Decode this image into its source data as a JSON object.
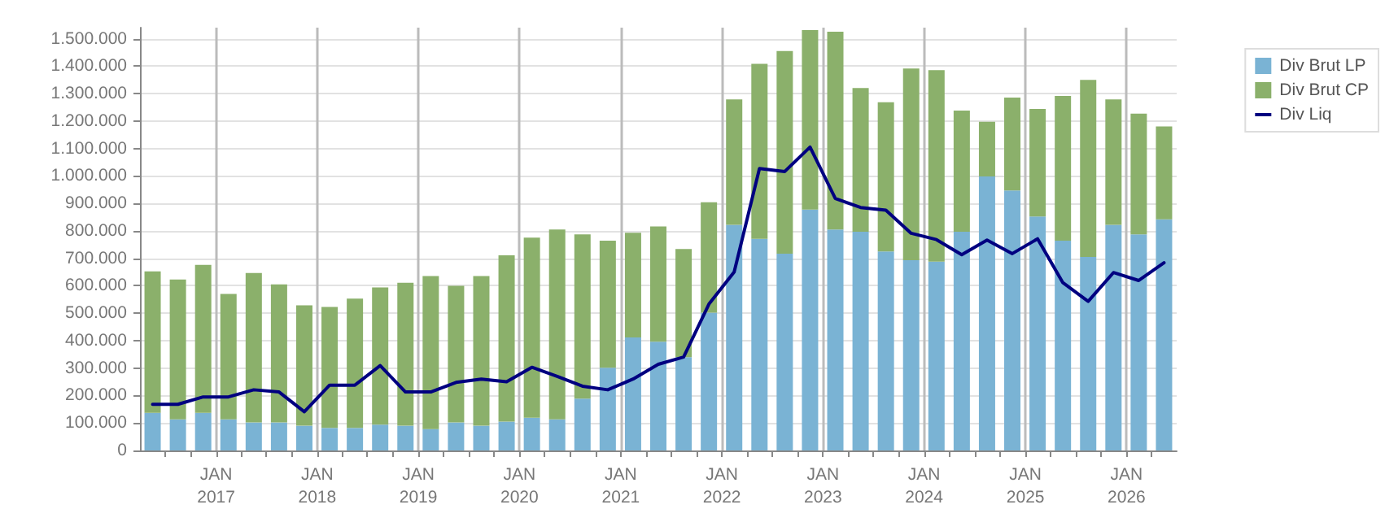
{
  "chart_data": {
    "type": "bar",
    "stacked": true,
    "grid": true,
    "legend": "top right",
    "marker": "none",
    "line_style": "solid",
    "x": [
      "2016-05-15",
      "2016-08-15",
      "2016-11-15",
      "2017-02-15",
      "2017-05-15",
      "2017-08-15",
      "2017-11-15",
      "2018-02-15",
      "2018-05-15",
      "2018-08-15",
      "2018-11-15",
      "2019-02-15",
      "2019-05-15",
      "2019-08-15",
      "2019-11-15",
      "2020-02-15",
      "2020-05-15",
      "2020-08-15",
      "2020-11-15",
      "2021-02-15",
      "2021-05-15",
      "2021-08-15",
      "2021-11-15",
      "2022-02-15",
      "2022-05-15",
      "2022-08-15",
      "2022-11-15",
      "2023-02-15",
      "2023-05-15",
      "2023-08-15",
      "2023-11-15",
      "2024-02-15",
      "2024-05-15",
      "2024-08-15",
      "2024-11-15",
      "2025-02-15",
      "2025-05-15",
      "2025-08-15",
      "2025-11-15",
      "2026-02-15",
      "2026-05-15"
    ],
    "xlim": [
      "2016-04-01",
      "2026-07-01"
    ],
    "xticks": [
      {
        "value": "2016-07-01",
        "label": null
      },
      {
        "value": "2016-10-01",
        "label": null
      },
      {
        "value": "2017-01-01",
        "label": "JAN\n2017"
      },
      {
        "value": "2017-04-01",
        "label": null
      },
      {
        "value": "2017-07-01",
        "label": null
      },
      {
        "value": "2017-10-01",
        "label": null
      },
      {
        "value": "2018-01-01",
        "label": "JAN\n2018"
      },
      {
        "value": "2018-04-01",
        "label": null
      },
      {
        "value": "2018-07-01",
        "label": null
      },
      {
        "value": "2018-10-01",
        "label": null
      },
      {
        "value": "2019-01-01",
        "label": "JAN\n2019"
      },
      {
        "value": "2019-04-01",
        "label": null
      },
      {
        "value": "2019-07-01",
        "label": null
      },
      {
        "value": "2019-10-01",
        "label": null
      },
      {
        "value": "2020-01-01",
        "label": "JAN\n2020"
      },
      {
        "value": "2020-04-01",
        "label": null
      },
      {
        "value": "2020-07-01",
        "label": null
      },
      {
        "value": "2020-10-01",
        "label": null
      },
      {
        "value": "2021-01-01",
        "label": "JAN\n2021"
      },
      {
        "value": "2021-04-01",
        "label": null
      },
      {
        "value": "2021-07-01",
        "label": null
      },
      {
        "value": "2021-10-01",
        "label": null
      },
      {
        "value": "2022-01-01",
        "label": "JAN\n2022"
      },
      {
        "value": "2022-04-01",
        "label": null
      },
      {
        "value": "2022-07-01",
        "label": null
      },
      {
        "value": "2022-10-01",
        "label": null
      },
      {
        "value": "2023-01-01",
        "label": "JAN\n2023"
      },
      {
        "value": "2023-04-01",
        "label": null
      },
      {
        "value": "2023-07-01",
        "label": null
      },
      {
        "value": "2023-10-01",
        "label": null
      },
      {
        "value": "2024-01-01",
        "label": "JAN\n2024"
      },
      {
        "value": "2024-04-01",
        "label": null
      },
      {
        "value": "2024-07-01",
        "label": null
      },
      {
        "value": "2024-10-01",
        "label": null
      },
      {
        "value": "2025-01-01",
        "label": "JAN\n2025"
      },
      {
        "value": "2025-04-01",
        "label": null
      },
      {
        "value": "2025-07-01",
        "label": null
      },
      {
        "value": "2025-10-01",
        "label": null
      },
      {
        "value": "2026-01-01",
        "label": "JAN\n2026"
      },
      {
        "value": "2026-04-01",
        "label": null
      }
    ],
    "ylim": [
      0,
      1540000
    ],
    "yticks": [
      0,
      {
        "value": 100000,
        "label": "100.000"
      },
      {
        "value": 200000,
        "label": "200.000"
      },
      {
        "value": 300000,
        "label": "300.000"
      },
      {
        "value": 400000,
        "label": "400.000"
      },
      {
        "value": 500000,
        "label": "500.000"
      },
      {
        "value": 600000,
        "label": "600.000"
      },
      {
        "value": 700000,
        "label": "700.000"
      },
      {
        "value": 800000,
        "label": "800.000"
      },
      {
        "value": 900000,
        "label": "900.000"
      },
      {
        "value": 1000000,
        "label": "1.000.000"
      },
      {
        "value": 1100000,
        "label": "1.100.000"
      },
      {
        "value": 1200000,
        "label": "1.200.000"
      },
      {
        "value": 1300000,
        "label": "1.300.000"
      },
      {
        "value": 1400000,
        "label": "1.400.000"
      },
      {
        "value": 1500000,
        "label": "1.500.000"
      }
    ],
    "series": [
      {
        "name": "Div Brut LP",
        "color": "#7ab3d4",
        "values": [
          137000,
          113000,
          137000,
          113000,
          102000,
          102000,
          90000,
          82000,
          82000,
          94000,
          90000,
          78000,
          102000,
          90000,
          105000,
          119000,
          113000,
          189000,
          301000,
          412000,
          396000,
          340000,
          502000,
          822000,
          771000,
          717000,
          877000,
          805000,
          797000,
          725000,
          693000,
          688000,
          797000,
          998000,
          947000,
          852000,
          764000,
          705000,
          822000,
          787000,
          842000
        ]
      },
      {
        "name": "Div Brut CP",
        "color": "#8bb06b",
        "values": [
          515000,
          510000,
          539000,
          457000,
          544000,
          503000,
          439000,
          441000,
          471000,
          500000,
          521000,
          557000,
          498000,
          545000,
          606000,
          656000,
          692000,
          598000,
          463000,
          381000,
          420000,
          394000,
          402000,
          457000,
          637000,
          738000,
          654000,
          720000,
          523000,
          543000,
          698000,
          697000,
          441000,
          199000,
          338000,
          392000,
          527000,
          645000,
          457000,
          440000,
          338000
        ]
      },
      {
        "name": "Div Liq",
        "type": "line",
        "color": "#000080",
        "values": [
          168000,
          168000,
          195000,
          195000,
          221000,
          213000,
          141000,
          238000,
          238000,
          309000,
          213000,
          213000,
          248000,
          260000,
          250000,
          303000,
          270000,
          234000,
          221000,
          260000,
          314000,
          340000,
          533000,
          650000,
          1027000,
          1016000,
          1105000,
          918000,
          885000,
          875000,
          791000,
          768000,
          713000,
          766000,
          717000,
          771000,
          611000,
          543000,
          648000,
          619000,
          684000
        ]
      }
    ]
  }
}
